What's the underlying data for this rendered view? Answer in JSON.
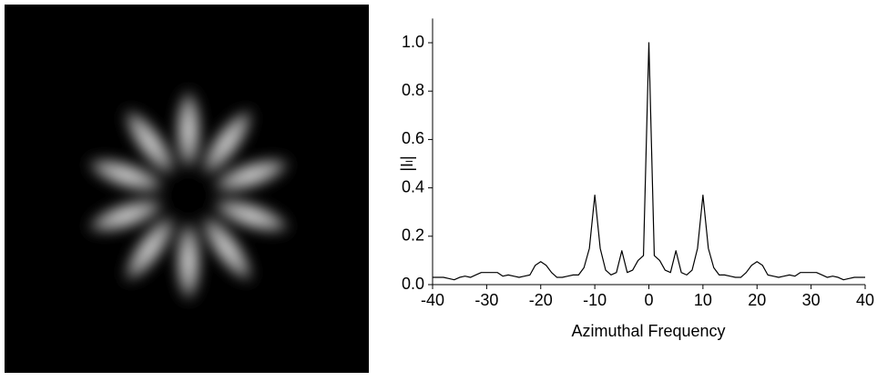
{
  "chart_data": {
    "type": "line",
    "x": [
      -40,
      -39,
      -38,
      -37,
      -36,
      -35,
      -34,
      -33,
      -32,
      -31,
      -30,
      -29,
      -28,
      -27,
      -26,
      -25,
      -24,
      -23,
      -22,
      -21,
      -20,
      -19,
      -18,
      -17,
      -16,
      -15,
      -14,
      -13,
      -12,
      -11,
      -10,
      -9,
      -8,
      -7,
      -6,
      -5,
      -4,
      -3,
      -2,
      -1,
      0,
      1,
      2,
      3,
      4,
      5,
      6,
      7,
      8,
      9,
      10,
      11,
      12,
      13,
      14,
      15,
      16,
      17,
      18,
      19,
      20,
      21,
      22,
      23,
      24,
      25,
      26,
      27,
      28,
      29,
      30,
      31,
      32,
      33,
      34,
      35,
      36,
      37,
      38,
      39,
      40
    ],
    "values": [
      0.03,
      0.03,
      0.03,
      0.025,
      0.02,
      0.03,
      0.035,
      0.03,
      0.04,
      0.05,
      0.05,
      0.05,
      0.05,
      0.035,
      0.04,
      0.035,
      0.03,
      0.035,
      0.04,
      0.08,
      0.095,
      0.08,
      0.05,
      0.03,
      0.03,
      0.035,
      0.04,
      0.04,
      0.07,
      0.15,
      0.37,
      0.15,
      0.06,
      0.04,
      0.05,
      0.14,
      0.05,
      0.06,
      0.1,
      0.12,
      1.0,
      0.12,
      0.1,
      0.06,
      0.05,
      0.14,
      0.05,
      0.04,
      0.06,
      0.15,
      0.37,
      0.15,
      0.07,
      0.04,
      0.04,
      0.035,
      0.03,
      0.03,
      0.05,
      0.08,
      0.095,
      0.08,
      0.04,
      0.035,
      0.03,
      0.035,
      0.04,
      0.035,
      0.05,
      0.05,
      0.05,
      0.05,
      0.04,
      0.03,
      0.035,
      0.03,
      0.02,
      0.025,
      0.03,
      0.03,
      0.03
    ],
    "color": "#000000",
    "xlabel": "Azimuthal Frequency",
    "ylabel": "|Iₗ|",
    "xlim": [
      -40,
      40
    ],
    "ylim": [
      0,
      1.1
    ],
    "xticks": [
      -40,
      -30,
      -20,
      -10,
      0,
      10,
      20,
      30,
      40
    ],
    "yticks": [
      {
        "value": 0,
        "label": "0.0"
      },
      0.2,
      0.4,
      0.6,
      0.8,
      {
        "value": 1,
        "label": "1.0"
      }
    ]
  }
}
